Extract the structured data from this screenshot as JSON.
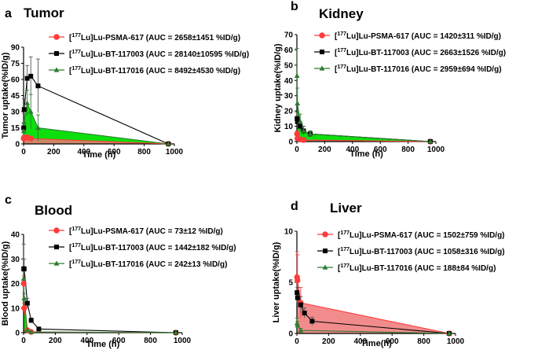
{
  "colors": {
    "psma": "#ff3b3b",
    "bt003": "#000000",
    "bt016": "#2e7d32",
    "fill_green": "#00dd00",
    "fill_red": "#f07878"
  },
  "chart_data": [
    {
      "panel": "a",
      "type": "line",
      "title": "Tumor",
      "xlabel": "Time (h)",
      "ylabel": "Tumor uptake(%ID/g)",
      "xlim": [
        0,
        1000
      ],
      "ylim": [
        0,
        90
      ],
      "xticks": [
        0,
        200,
        400,
        600,
        800,
        1000
      ],
      "yticks": [
        0,
        15,
        30,
        45,
        60,
        75,
        90
      ],
      "series": [
        {
          "label_pre": "[",
          "label_sup": "177",
          "label_post": "Lu]Lu-PSMA-617 (AUC = 2658±1451 %ID/g)",
          "key": "psma",
          "marker": "circle",
          "fill": "red",
          "x": [
            1,
            4,
            24,
            48,
            960
          ],
          "y": [
            5,
            6,
            6,
            5,
            0
          ],
          "err": [
            2,
            2,
            2,
            2,
            0
          ]
        },
        {
          "label_pre": "[",
          "label_sup": "177",
          "label_post": "Lu]Lu-BT-117003 (AUC = 28140±10595 %ID/g)",
          "key": "bt003",
          "marker": "square",
          "fill": "none",
          "x": [
            1,
            4,
            24,
            48,
            96,
            960
          ],
          "y": [
            15,
            32,
            61,
            63,
            54,
            0
          ],
          "err": [
            5,
            10,
            12,
            18,
            25,
            0
          ]
        },
        {
          "label_pre": "[",
          "label_sup": "177",
          "label_post": "Lu]Lu-BT-117016 (AUC = 8492±4530 %ID/g)",
          "key": "bt016",
          "marker": "triangle",
          "fill": "green",
          "x": [
            1,
            4,
            24,
            48,
            96,
            960
          ],
          "y": [
            12,
            20,
            38,
            30,
            15,
            0
          ],
          "err": [
            4,
            8,
            12,
            16,
            12,
            0
          ]
        }
      ]
    },
    {
      "panel": "b",
      "type": "line",
      "title": "Kidney",
      "xlabel": "Time (h)",
      "ylabel": "Kidney uptake(%ID/g)",
      "xlim": [
        0,
        1000
      ],
      "ylim": [
        0,
        70
      ],
      "xticks": [
        0,
        200,
        400,
        600,
        800,
        1000
      ],
      "yticks": [
        0,
        10,
        20,
        30,
        40,
        50,
        60,
        70
      ],
      "series": [
        {
          "label_pre": "[",
          "label_sup": "177",
          "label_post": "Lu]Lu-PSMA-617 (AUC = 1420±311 %ID/g)",
          "key": "psma",
          "marker": "circle",
          "fill": "red",
          "x": [
            1,
            4,
            24,
            48,
            960
          ],
          "y": [
            5,
            2,
            1.5,
            1,
            0
          ],
          "err": [
            2,
            1,
            0.5,
            0.5,
            0
          ]
        },
        {
          "label_pre": "[",
          "label_sup": "177",
          "label_post": "Lu]Lu-BT-117003 (AUC = 2663±1526 %ID/g)",
          "key": "bt003",
          "marker": "square",
          "fill": "none",
          "x": [
            1,
            4,
            24,
            48,
            96,
            960
          ],
          "y": [
            15,
            13,
            10,
            7,
            5,
            0
          ],
          "err": [
            4,
            4,
            3,
            3,
            2,
            0
          ]
        },
        {
          "label_pre": "[",
          "label_sup": "177",
          "label_post": "Lu]Lu-BT-117016 (AUC = 2959±694 %ID/g)",
          "key": "bt016",
          "marker": "triangle",
          "fill": "green",
          "x": [
            1,
            4,
            24,
            48,
            96,
            960
          ],
          "y": [
            43,
            25,
            13,
            7,
            5,
            0
          ],
          "err": [
            18,
            10,
            5,
            3,
            2,
            0
          ]
        }
      ]
    },
    {
      "panel": "c",
      "type": "line",
      "title": "Blood",
      "xlabel": "Time (h)",
      "ylabel": "Blood uptake(%ID/g)",
      "xlim": [
        0,
        1000
      ],
      "ylim": [
        0,
        40
      ],
      "xticks": [
        0,
        200,
        400,
        600,
        800,
        1000
      ],
      "yticks": [
        0,
        10,
        20,
        30,
        40
      ],
      "series": [
        {
          "label_pre": "[",
          "label_sup": "177",
          "label_post": "Lu]Lu-PSMA-617 (AUC = 73±12 %ID/g)",
          "key": "psma",
          "marker": "circle",
          "fill": "none",
          "x": [
            1,
            4,
            24,
            48,
            960
          ],
          "y": [
            20,
            10,
            1,
            0.3,
            0
          ],
          "err": [
            3,
            2,
            0.5,
            0.2,
            0
          ]
        },
        {
          "label_pre": "[",
          "label_sup": "177",
          "label_post": "Lu]Lu-BT-117003 (AUC = 1442±182 %ID/g)",
          "key": "bt003",
          "marker": "square",
          "fill": "none",
          "x": [
            1,
            4,
            24,
            48,
            96,
            960
          ],
          "y": [
            26,
            26,
            12,
            5,
            1.5,
            0
          ],
          "err": [
            10,
            4,
            2,
            1,
            0.5,
            0
          ]
        },
        {
          "label_pre": "[",
          "label_sup": "177",
          "label_post": "Lu]Lu-BT-117016 (AUC = 242±13 %ID/g)",
          "key": "bt016",
          "marker": "triangle",
          "fill": "green",
          "x": [
            1,
            4,
            24,
            48,
            960
          ],
          "y": [
            22,
            14,
            1,
            0.3,
            0
          ],
          "err": [
            3,
            2,
            0.5,
            0.2,
            0
          ]
        }
      ]
    },
    {
      "panel": "d",
      "type": "line",
      "title": "Liver",
      "xlabel": "Time(h)",
      "ylabel": "Liver uptake(%ID/g)",
      "xlim": [
        0,
        1000
      ],
      "ylim": [
        0,
        10
      ],
      "xticks": [
        0,
        200,
        400,
        600,
        800,
        1000
      ],
      "yticks": [
        0,
        5,
        10
      ],
      "series": [
        {
          "label_pre": "[",
          "label_sup": "177",
          "label_post": "Lu]Lu-PSMA-617 (AUC = 1502±759 %ID/g)",
          "key": "psma",
          "marker": "circle",
          "fill": "red",
          "x": [
            1,
            4,
            24,
            960
          ],
          "y": [
            5.5,
            5.2,
            3,
            0
          ],
          "err": [
            2.5,
            2.5,
            1.5,
            0
          ]
        },
        {
          "label_pre": "[",
          "label_sup": "177",
          "label_post": "Lu]Lu-BT-117003 (AUC = 1058±316 %ID/g)",
          "key": "bt003",
          "marker": "square",
          "fill": "none",
          "x": [
            1,
            4,
            24,
            48,
            96,
            960
          ],
          "y": [
            4,
            3.5,
            2.8,
            2,
            1.2,
            0
          ],
          "err": [
            1,
            1,
            0.8,
            0.5,
            0.4,
            0
          ]
        },
        {
          "label_pre": "[",
          "label_sup": "177",
          "label_post": "Lu]Lu-BT-117016 (AUC = 188±84 %ID/g)",
          "key": "bt016",
          "marker": "triangle",
          "fill": "none",
          "x": [
            1,
            4,
            24,
            960
          ],
          "y": [
            1,
            0.8,
            0.3,
            0
          ],
          "err": [
            0.5,
            0.4,
            0.2,
            0
          ]
        }
      ]
    }
  ]
}
